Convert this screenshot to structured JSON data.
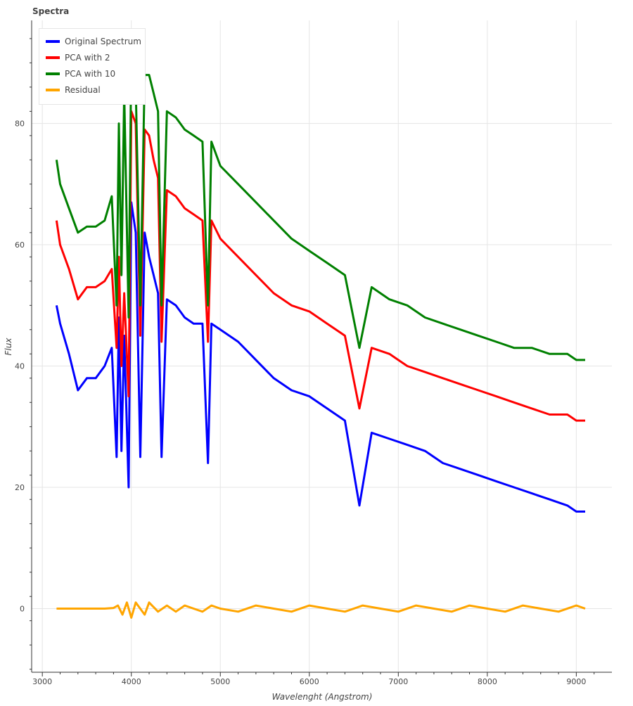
{
  "chart_data": {
    "type": "line",
    "title": "Spectra",
    "xlabel": "Wavelenght (Angstrom)",
    "ylabel": "Flux",
    "xlim": [
      2880,
      9400
    ],
    "ylim": [
      -10.5,
      97
    ],
    "x_ticks": [
      3000,
      4000,
      5000,
      6000,
      7000,
      8000,
      9000
    ],
    "y_ticks": [
      0,
      20,
      40,
      60,
      80
    ],
    "grid": true,
    "legend_position": "top-left",
    "series": [
      {
        "name": "Original Spectrum",
        "color": "#0000ff",
        "x": [
          3160,
          3200,
          3300,
          3400,
          3500,
          3600,
          3700,
          3780,
          3835,
          3860,
          3889,
          3920,
          3970,
          4000,
          4050,
          4101,
          4150,
          4200,
          4250,
          4300,
          4340,
          4400,
          4500,
          4600,
          4700,
          4800,
          4861,
          4900,
          5000,
          5200,
          5400,
          5600,
          5800,
          6000,
          6200,
          6400,
          6563,
          6700,
          6900,
          7100,
          7300,
          7500,
          7700,
          7900,
          8100,
          8300,
          8500,
          8700,
          8900,
          9000,
          9100
        ],
        "y": [
          50,
          47,
          42,
          36,
          38,
          38,
          40,
          43,
          25,
          48,
          26,
          45,
          20,
          67,
          62,
          25,
          62,
          58,
          55,
          52,
          25,
          51,
          50,
          48,
          47,
          47,
          24,
          47,
          46,
          44,
          41,
          38,
          36,
          35,
          33,
          31,
          17,
          29,
          28,
          27,
          26,
          24,
          23,
          22,
          21,
          20,
          19,
          18,
          17,
          16,
          16
        ]
      },
      {
        "name": "PCA with 2",
        "color": "#ff0000",
        "x": [
          3160,
          3200,
          3300,
          3400,
          3500,
          3600,
          3700,
          3780,
          3835,
          3860,
          3889,
          3920,
          3970,
          4000,
          4050,
          4101,
          4150,
          4200,
          4250,
          4300,
          4340,
          4400,
          4500,
          4600,
          4700,
          4800,
          4861,
          4900,
          5000,
          5200,
          5400,
          5600,
          5800,
          6000,
          6200,
          6400,
          6563,
          6700,
          6900,
          7100,
          7300,
          7500,
          7700,
          7900,
          8100,
          8300,
          8500,
          8700,
          8900,
          9000,
          9100
        ],
        "y": [
          64,
          60,
          56,
          51,
          53,
          53,
          54,
          56,
          43,
          58,
          40,
          52,
          35,
          82,
          80,
          45,
          79,
          78,
          74,
          71,
          44,
          69,
          68,
          66,
          65,
          64,
          44,
          64,
          61,
          58,
          55,
          52,
          50,
          49,
          47,
          45,
          33,
          43,
          42,
          40,
          39,
          38,
          37,
          36,
          35,
          34,
          33,
          32,
          32,
          31,
          31
        ]
      },
      {
        "name": "PCA with 10",
        "color": "#008000",
        "x": [
          3160,
          3200,
          3300,
          3400,
          3500,
          3600,
          3700,
          3780,
          3835,
          3860,
          3889,
          3920,
          3970,
          4000,
          4050,
          4101,
          4150,
          4200,
          4250,
          4300,
          4340,
          4400,
          4500,
          4600,
          4700,
          4800,
          4861,
          4900,
          5000,
          5200,
          5400,
          5600,
          5800,
          6000,
          6200,
          6400,
          6563,
          6700,
          6900,
          7100,
          7300,
          7500,
          7700,
          7900,
          8100,
          8300,
          8500,
          8700,
          8900,
          9000,
          9100
        ],
        "y": [
          74,
          70,
          66,
          62,
          63,
          63,
          64,
          68,
          50,
          80,
          55,
          85,
          48,
          92,
          86,
          50,
          88,
          88,
          85,
          82,
          50,
          82,
          81,
          79,
          78,
          77,
          50,
          77,
          73,
          70,
          67,
          64,
          61,
          59,
          57,
          55,
          43,
          53,
          51,
          50,
          48,
          47,
          46,
          45,
          44,
          43,
          43,
          42,
          42,
          41,
          41
        ]
      },
      {
        "name": "Residual",
        "color": "#ffa500",
        "x": [
          3160,
          3300,
          3500,
          3700,
          3800,
          3850,
          3900,
          3950,
          4000,
          4050,
          4100,
          4150,
          4200,
          4300,
          4400,
          4500,
          4600,
          4700,
          4800,
          4900,
          5000,
          5200,
          5400,
          5600,
          5800,
          6000,
          6200,
          6400,
          6600,
          6800,
          7000,
          7200,
          7400,
          7600,
          7800,
          8000,
          8200,
          8400,
          8600,
          8800,
          9000,
          9100
        ],
        "y": [
          0,
          0,
          0,
          0,
          0.1,
          0.5,
          -1,
          1,
          -1.5,
          1,
          0,
          -1,
          1,
          -0.5,
          0.5,
          -0.5,
          0.5,
          0,
          -0.5,
          0.5,
          0,
          -0.5,
          0.5,
          0,
          -0.5,
          0.5,
          0,
          -0.5,
          0.5,
          0,
          -0.5,
          0.5,
          0,
          -0.5,
          0.5,
          0,
          -0.5,
          0.5,
          0,
          -0.5,
          0.5,
          0
        ]
      }
    ]
  }
}
